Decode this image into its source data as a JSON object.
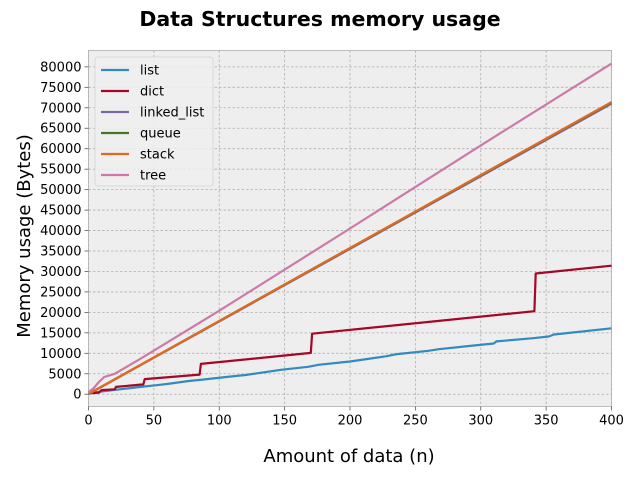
{
  "chart_data": {
    "type": "line",
    "title": "Data Structures memory usage",
    "xlabel": "Amount of data (n)",
    "ylabel": "Memory usage (Bytes)",
    "xlim": [
      0,
      400
    ],
    "ylim": [
      -3000,
      84000
    ],
    "xticks": [
      0,
      50,
      100,
      150,
      200,
      250,
      300,
      350,
      400
    ],
    "yticks": [
      0,
      5000,
      10000,
      15000,
      20000,
      25000,
      30000,
      35000,
      40000,
      45000,
      50000,
      55000,
      60000,
      65000,
      70000,
      75000,
      80000
    ],
    "grid": true,
    "legend_position": "top-left",
    "series": [
      {
        "name": "list",
        "color": "#348abd",
        "points": [
          [
            0,
            56
          ],
          [
            4,
            400
          ],
          [
            8,
            600
          ],
          [
            16,
            900
          ],
          [
            24,
            1200
          ],
          [
            32,
            1500
          ],
          [
            40,
            1800
          ],
          [
            52,
            2200
          ],
          [
            60,
            2500
          ],
          [
            76,
            3200
          ],
          [
            88,
            3600
          ],
          [
            108,
            4300
          ],
          [
            120,
            4700
          ],
          [
            148,
            6000
          ],
          [
            168,
            6700
          ],
          [
            176,
            7200
          ],
          [
            200,
            8000
          ],
          [
            228,
            9300
          ],
          [
            236,
            9800
          ],
          [
            260,
            10600
          ],
          [
            268,
            11000
          ],
          [
            292,
            11800
          ],
          [
            310,
            12400
          ],
          [
            312,
            12900
          ],
          [
            340,
            13700
          ],
          [
            352,
            14100
          ],
          [
            356,
            14600
          ],
          [
            400,
            16100
          ]
        ]
      },
      {
        "name": "dict",
        "color": "#a60628",
        "points": [
          [
            0,
            232
          ],
          [
            4,
            300
          ],
          [
            8,
            400
          ],
          [
            10,
            1000
          ],
          [
            20,
            1200
          ],
          [
            21,
            1800
          ],
          [
            42,
            2400
          ],
          [
            43,
            3700
          ],
          [
            85,
            4800
          ],
          [
            86,
            7400
          ],
          [
            170,
            10100
          ],
          [
            171,
            14800
          ],
          [
            341,
            20300
          ],
          [
            342,
            29500
          ],
          [
            400,
            31400
          ]
        ]
      },
      {
        "name": "linked_list",
        "color": "#7a68a6",
        "points": [
          [
            0,
            48
          ],
          [
            20,
            3600
          ],
          [
            400,
            71000
          ]
        ]
      },
      {
        "name": "queue",
        "color": "#467821",
        "points": [
          [
            0,
            64
          ],
          [
            20,
            3650
          ],
          [
            400,
            71300
          ]
        ]
      },
      {
        "name": "stack",
        "color": "#cf4457",
        "points": [
          [
            0,
            64
          ],
          [
            20,
            3650
          ],
          [
            400,
            71400
          ]
        ]
      },
      {
        "name": "tree",
        "color": "#cc79a7",
        "points": [
          [
            0,
            500
          ],
          [
            4,
            1500
          ],
          [
            8,
            3000
          ],
          [
            12,
            4200
          ],
          [
            20,
            5000
          ],
          [
            40,
            8700
          ],
          [
            100,
            20400
          ],
          [
            200,
            40500
          ],
          [
            300,
            60800
          ],
          [
            400,
            80800
          ]
        ]
      }
    ],
    "series_colors": {
      "stack_line": "#e06a1f"
    }
  }
}
